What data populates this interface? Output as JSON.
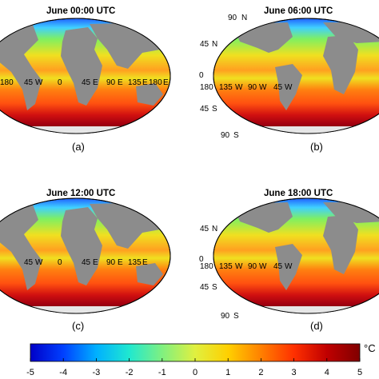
{
  "panels": [
    {
      "title": "June 00:00 UTC",
      "letter": "(a)"
    },
    {
      "title": "June 06:00 UTC",
      "letter": "(b)"
    },
    {
      "title": "June 12:00 UTC",
      "letter": "(c)"
    },
    {
      "title": "June 18:00 UTC",
      "letter": "(d)"
    }
  ],
  "lat_labels": [
    "90",
    "N",
    "45",
    "N",
    "0",
    "45",
    "S",
    "90",
    "S"
  ],
  "lon_labels_a": [
    "180",
    "45",
    "W",
    "0",
    "45",
    "E",
    "90",
    "E",
    "135",
    "E",
    "180",
    "E"
  ],
  "lon_labels_b": [
    "180",
    "135",
    "W",
    "90",
    "W",
    "45",
    "W"
  ],
  "colorbar": {
    "ticks": [
      "-5",
      "-4",
      "-3",
      "-2",
      "-1",
      "0",
      "1",
      "2",
      "3",
      "4",
      "5"
    ],
    "unit": "°C",
    "colors": [
      "#0000c8",
      "#0040ff",
      "#00b0ff",
      "#20e8d0",
      "#80f080",
      "#e0f040",
      "#ffd000",
      "#ff8000",
      "#ff3000",
      "#c00000",
      "#800000"
    ]
  },
  "colors": {
    "land": "#8c8c8c",
    "ocean_warm": "#ff9a20",
    "ocean_mid": "#f0e020",
    "ocean_cool": "#60e060",
    "polar": "#b40010"
  }
}
